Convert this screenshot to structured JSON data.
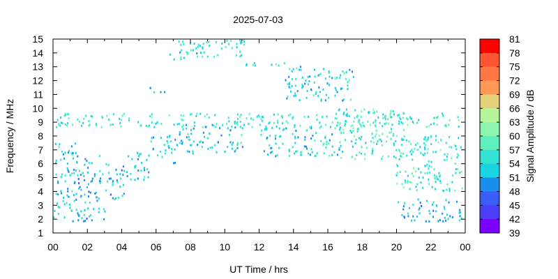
{
  "chart_data": {
    "type": "heatmap",
    "title": "2025-07-03",
    "xlabel": "UT Time / hrs",
    "ylabel": "Frequency / MHz",
    "colorbar_label": "Signal Amplitude / dB",
    "xlim": [
      0,
      24
    ],
    "ylim": [
      1,
      15
    ],
    "x_ticks": [
      "00",
      "02",
      "04",
      "06",
      "08",
      "10",
      "12",
      "14",
      "16",
      "18",
      "20",
      "22",
      "00"
    ],
    "y_ticks": [
      "1",
      "2",
      "3",
      "4",
      "5",
      "6",
      "7",
      "8",
      "9",
      "10",
      "11",
      "12",
      "13",
      "14",
      "15"
    ],
    "colorbar": {
      "ticks": [
        "81",
        "78",
        "75",
        "72",
        "69",
        "66",
        "63",
        "60",
        "57",
        "54",
        "51",
        "48",
        "45",
        "42",
        "39"
      ],
      "colors": [
        "#ff0000",
        "#ff5533",
        "#ff7744",
        "#ff9955",
        "#e4cf7a",
        "#b6f59c",
        "#8cf6b0",
        "#5ff0c0",
        "#33e3d3",
        "#1ad4e3",
        "#1b8ff0",
        "#3a5cf7",
        "#4a3ef8",
        "#7b00ff"
      ]
    },
    "regions": [
      {
        "t": [
          0.0,
          1.3
        ],
        "f": [
          1.8,
          7.5
        ],
        "amp": 53
      },
      {
        "t": [
          1.3,
          3.0
        ],
        "f": [
          1.8,
          6.6
        ],
        "amp": 52
      },
      {
        "t": [
          3.0,
          4.2
        ],
        "f": [
          3.2,
          6.0
        ],
        "amp": 52
      },
      {
        "t": [
          4.2,
          5.6
        ],
        "f": [
          4.6,
          6.8
        ],
        "amp": 53
      },
      {
        "t": [
          5.6,
          7.2
        ],
        "f": [
          6.0,
          8.0
        ],
        "amp": 53
      },
      {
        "t": [
          7.2,
          9.0
        ],
        "f": [
          6.6,
          8.8
        ],
        "amp": 53
      },
      {
        "t": [
          9.0,
          11.0
        ],
        "f": [
          6.8,
          8.8
        ],
        "amp": 53
      },
      {
        "t": [
          12.0,
          15.2
        ],
        "f": [
          6.5,
          8.6
        ],
        "amp": 53
      },
      {
        "t": [
          15.2,
          16.8
        ],
        "f": [
          6.5,
          8.6
        ],
        "amp": 54
      },
      {
        "t": [
          16.5,
          20.5
        ],
        "f": [
          6.3,
          9.9
        ],
        "amp": 57
      },
      {
        "t": [
          19.8,
          23.8
        ],
        "f": [
          4.0,
          8.0
        ],
        "amp": 56
      },
      {
        "t": [
          20.0,
          23.8
        ],
        "f": [
          1.8,
          3.4
        ],
        "amp": 52
      },
      {
        "t": [
          6.5,
          11.2
        ],
        "f": [
          13.5,
          14.9
        ],
        "amp": 55
      },
      {
        "t": [
          10.5,
          13.8
        ],
        "f": [
          13.0,
          13.3
        ],
        "amp": 55
      },
      {
        "t": [
          5.5,
          6.5
        ],
        "f": [
          11.0,
          11.5
        ],
        "amp": 53
      },
      {
        "t": [
          0.0,
          23.8
        ],
        "f": [
          8.6,
          9.6
        ],
        "amp": 56
      },
      {
        "t": [
          13.5,
          17.5
        ],
        "f": [
          10.5,
          13.0
        ],
        "amp": 54
      }
    ]
  }
}
